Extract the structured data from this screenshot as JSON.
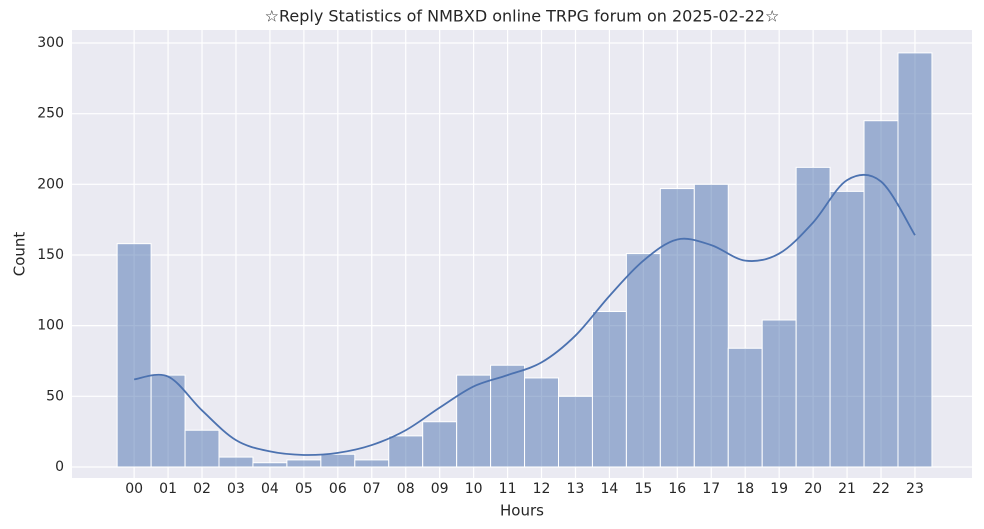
{
  "chart_data": {
    "type": "histogram",
    "title": "☆Reply Statistics of NMBXD online TRPG forum on 2025-02-22☆",
    "xlabel": "Hours",
    "ylabel": "Count",
    "categories": [
      "00",
      "01",
      "02",
      "03",
      "04",
      "05",
      "06",
      "07",
      "08",
      "09",
      "10",
      "11",
      "12",
      "13",
      "14",
      "15",
      "16",
      "17",
      "18",
      "19",
      "20",
      "21",
      "22",
      "23"
    ],
    "values": [
      158,
      65,
      26,
      7,
      3,
      5,
      9,
      5,
      22,
      32,
      65,
      72,
      63,
      50,
      110,
      151,
      197,
      200,
      84,
      104,
      212,
      195,
      245,
      293
    ],
    "color": "#4c72b0",
    "kde": {
      "color": "#4c72b0",
      "values": [
        62,
        64,
        40,
        19,
        11,
        8.5,
        10,
        15.5,
        26,
        42,
        57,
        65,
        74,
        93,
        121,
        146,
        161,
        157,
        146,
        151,
        173,
        203,
        202,
        164
      ]
    },
    "xlim": [
      -1.83,
      24.68
    ],
    "ylim": [
      -7.8,
      309.2
    ],
    "yticks": [
      0,
      50,
      100,
      150,
      200,
      250,
      300
    ],
    "grid": true
  }
}
